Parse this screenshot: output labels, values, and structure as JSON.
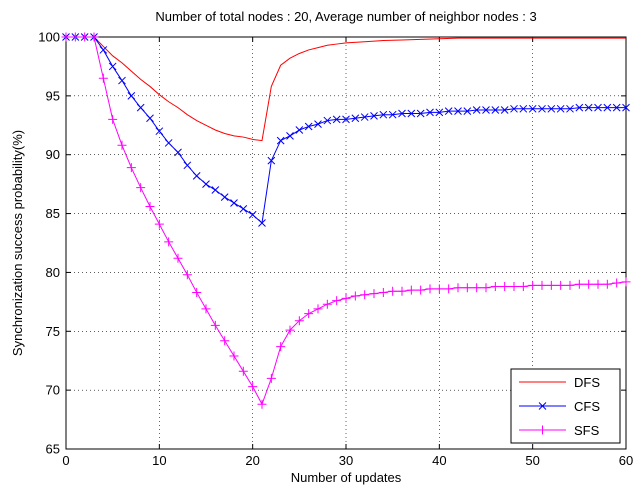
{
  "chart_data": {
    "type": "line",
    "title": "Number of total nodes : 20, Average number of neighbor nodes : 3",
    "xlabel": "Number of updates",
    "ylabel": "Synchronization success probability(%)",
    "xlim": [
      0,
      60
    ],
    "ylim": [
      65,
      100
    ],
    "xticks": [
      0,
      10,
      20,
      30,
      40,
      50,
      60
    ],
    "yticks": [
      65,
      70,
      75,
      80,
      85,
      90,
      95,
      100
    ],
    "grid": true,
    "legend_position": "bottom-right",
    "series": [
      {
        "name": "DFS",
        "color": "#ff0000",
        "marker": "none",
        "x": [
          0,
          1,
          2,
          3,
          4,
          5,
          6,
          7,
          8,
          9,
          10,
          11,
          12,
          13,
          14,
          15,
          16,
          17,
          18,
          19,
          20,
          21,
          22,
          23,
          24,
          25,
          26,
          27,
          28,
          29,
          30,
          32,
          34,
          36,
          38,
          40,
          42,
          44,
          46,
          48,
          50,
          52,
          54,
          56,
          58,
          60
        ],
        "y": [
          100,
          100,
          100,
          100,
          99.2,
          98.4,
          97.8,
          97.1,
          96.4,
          95.8,
          95.1,
          94.5,
          94.0,
          93.4,
          92.9,
          92.5,
          92.1,
          91.8,
          91.6,
          91.5,
          91.3,
          91.2,
          95.8,
          97.6,
          98.2,
          98.6,
          98.9,
          99.1,
          99.3,
          99.4,
          99.5,
          99.6,
          99.7,
          99.75,
          99.8,
          99.85,
          99.9,
          99.9,
          99.9,
          99.9,
          99.9,
          99.9,
          99.9,
          99.9,
          99.9,
          99.9
        ]
      },
      {
        "name": "CFS",
        "color": "#0000ff",
        "marker": "x",
        "x": [
          0,
          1,
          2,
          3,
          4,
          5,
          6,
          7,
          8,
          9,
          10,
          11,
          12,
          13,
          14,
          15,
          16,
          17,
          18,
          19,
          20,
          21,
          22,
          23,
          24,
          25,
          26,
          27,
          28,
          29,
          30,
          31,
          32,
          33,
          34,
          35,
          36,
          37,
          38,
          39,
          40,
          41,
          42,
          43,
          44,
          45,
          46,
          47,
          48,
          49,
          50,
          51,
          52,
          53,
          54,
          55,
          56,
          57,
          58,
          59,
          60
        ],
        "y": [
          100,
          100,
          100,
          100,
          98.9,
          97.5,
          96.3,
          95.0,
          94.0,
          93.1,
          92.0,
          91.0,
          90.2,
          89.1,
          88.2,
          87.5,
          87.0,
          86.4,
          85.9,
          85.4,
          84.9,
          84.2,
          89.5,
          91.2,
          91.6,
          92.1,
          92.4,
          92.6,
          92.9,
          93.0,
          93.0,
          93.1,
          93.2,
          93.3,
          93.4,
          93.4,
          93.5,
          93.5,
          93.5,
          93.6,
          93.6,
          93.7,
          93.7,
          93.7,
          93.8,
          93.8,
          93.8,
          93.8,
          93.9,
          93.9,
          93.9,
          93.9,
          93.9,
          93.9,
          93.9,
          94.0,
          94.0,
          94.0,
          94.0,
          94.0,
          94.0
        ]
      },
      {
        "name": "SFS",
        "color": "#ff00ff",
        "marker": "+",
        "x": [
          0,
          1,
          2,
          3,
          4,
          5,
          6,
          7,
          8,
          9,
          10,
          11,
          12,
          13,
          14,
          15,
          16,
          17,
          18,
          19,
          20,
          21,
          22,
          23,
          24,
          25,
          26,
          27,
          28,
          29,
          30,
          31,
          32,
          33,
          34,
          35,
          36,
          37,
          38,
          39,
          40,
          41,
          42,
          43,
          44,
          45,
          46,
          47,
          48,
          49,
          50,
          51,
          52,
          53,
          54,
          55,
          56,
          57,
          58,
          59,
          60
        ],
        "y": [
          100,
          100,
          100,
          100,
          96.5,
          93.0,
          90.8,
          88.9,
          87.2,
          85.6,
          84.1,
          82.6,
          81.2,
          79.8,
          78.3,
          76.9,
          75.5,
          74.2,
          72.9,
          71.6,
          70.3,
          68.8,
          71.0,
          73.7,
          75.1,
          75.9,
          76.5,
          76.9,
          77.3,
          77.6,
          77.8,
          78.0,
          78.1,
          78.2,
          78.3,
          78.4,
          78.4,
          78.5,
          78.5,
          78.6,
          78.6,
          78.6,
          78.7,
          78.7,
          78.7,
          78.7,
          78.8,
          78.8,
          78.8,
          78.8,
          78.9,
          78.9,
          78.9,
          78.9,
          78.9,
          79.0,
          79.0,
          79.0,
          79.0,
          79.1,
          79.2
        ]
      }
    ]
  }
}
